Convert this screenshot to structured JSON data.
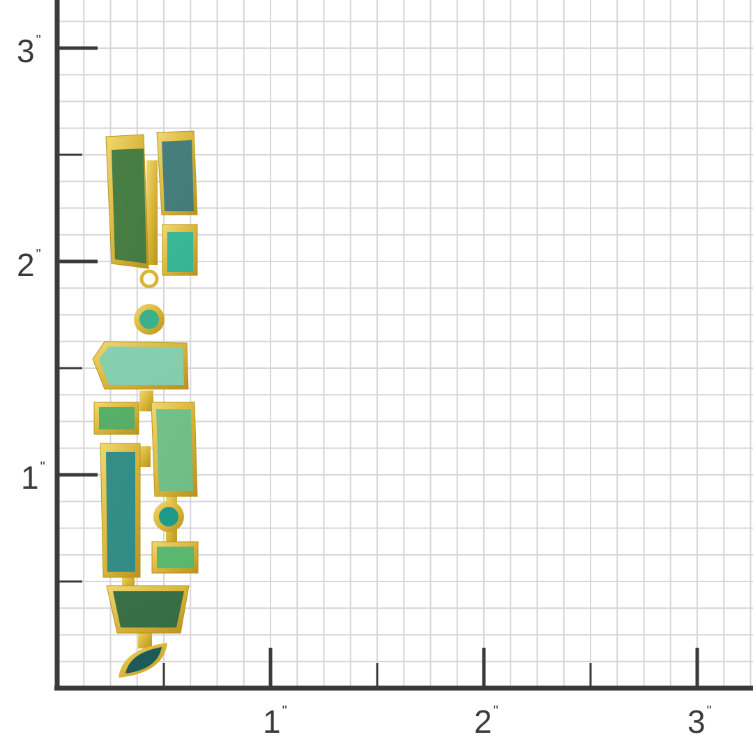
{
  "scale": {
    "unit_mark": "\"",
    "x_labels": [
      "1",
      "2",
      "3"
    ],
    "y_labels": [
      "3",
      "2",
      "1"
    ],
    "grid_color": "#d6d6da",
    "axis_color": "#3a3a3a"
  },
  "product": {
    "type": "gold and green tourmaline drop earring",
    "gold_color": "#d9b63a",
    "stone_colors": [
      "#3f7a45",
      "#3d7a80",
      "#2fb59a",
      "#7fd0b4",
      "#4fae6a",
      "#2a8a8a",
      "#2e6a45",
      "#1f5a5a"
    ]
  }
}
